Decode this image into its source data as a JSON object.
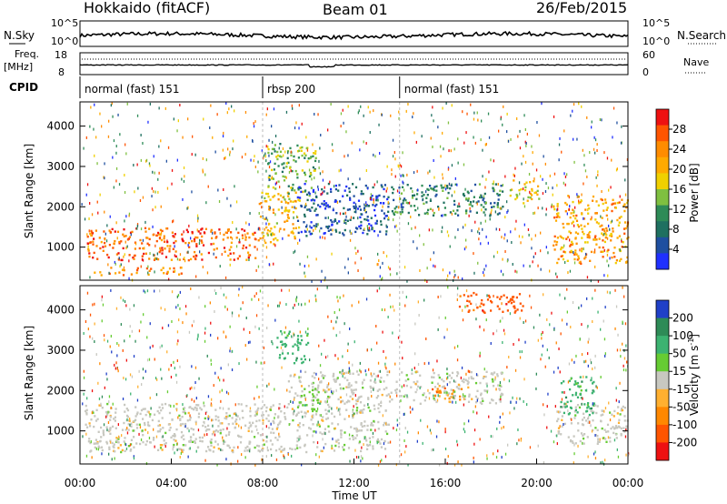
{
  "header": {
    "station": "Hokkaido (fitACF)",
    "beam": "Beam 01",
    "date": "26/Feb/2015"
  },
  "top_panel": {
    "left_label": "N.Sky",
    "right_label": "N.Search",
    "y_ticks_left": [
      "10^5",
      "10^0"
    ],
    "y_ticks_right": [
      "10^5",
      "10^0"
    ]
  },
  "freq_panel": {
    "left_label_1": "Freq.",
    "left_label_2": "[MHz]",
    "right_label": "Nave",
    "y_ticks_left": [
      "18",
      "8"
    ],
    "y_ticks_right": [
      "60",
      "0"
    ]
  },
  "cpid_panel": {
    "label": "CPID",
    "segments": [
      {
        "label": "normal (fast) 151",
        "start_hour": 0,
        "end_hour": 8
      },
      {
        "label": "rbsp 200",
        "start_hour": 8,
        "end_hour": 14
      },
      {
        "label": "normal (fast) 151",
        "start_hour": 14,
        "end_hour": 24
      }
    ]
  },
  "chart_data": [
    {
      "type": "heatmap",
      "panel": "power",
      "xlabel": "",
      "ylabel": "Slant Range [km]",
      "x_range_hours": [
        0,
        24
      ],
      "y_range_km": [
        180,
        4600
      ],
      "y_ticks": [
        1000,
        2000,
        3000,
        4000
      ],
      "colorbar": {
        "label": "Power [dB]",
        "ticks": [
          "28",
          "24",
          "20",
          "16",
          "12",
          "8",
          "4"
        ],
        "colors": [
          "#ee1111",
          "#ff5500",
          "#ff8c00",
          "#ffaa00",
          "#f0d000",
          "#7fc040",
          "#2e8b57",
          "#1f7060",
          "#1f4fa0",
          "#2030ff"
        ]
      },
      "regions": [
        {
          "t0": 0.3,
          "t1": 7.8,
          "r0": 700,
          "r1": 1500,
          "level": 26,
          "desc": "strong near-range echoes"
        },
        {
          "t0": 0.6,
          "t1": 4.5,
          "r0": 330,
          "r1": 520,
          "level": 24
        },
        {
          "t0": 7.8,
          "t1": 9.6,
          "r0": 1100,
          "r1": 2400,
          "level": 20
        },
        {
          "t0": 8.2,
          "t1": 10.3,
          "r0": 2300,
          "r1": 3600,
          "level": 14
        },
        {
          "t0": 9.5,
          "t1": 13.5,
          "r0": 1300,
          "r1": 2600,
          "level": 6
        },
        {
          "t0": 13.5,
          "t1": 18.5,
          "r0": 1800,
          "r1": 2600,
          "level": 10
        },
        {
          "t0": 18.8,
          "t1": 20.1,
          "r0": 2100,
          "r1": 2700,
          "level": 18
        },
        {
          "t0": 20.7,
          "t1": 24,
          "r0": 600,
          "r1": 2300,
          "level": 22
        }
      ]
    },
    {
      "type": "heatmap",
      "panel": "velocity",
      "xlabel": "Time UT",
      "ylabel": "Slant Range [km]",
      "x_range_hours": [
        0,
        24
      ],
      "y_range_km": [
        180,
        4600
      ],
      "y_ticks": [
        1000,
        2000,
        3000,
        4000
      ],
      "x_ticks": [
        "00:00",
        "04:00",
        "08:00",
        "12:00",
        "16:00",
        "20:00",
        "00:00"
      ],
      "colorbar": {
        "label": "Velocity [m s",
        "label_superscript": "-1",
        "label_close": "]",
        "ticks": [
          "200",
          "100",
          "50",
          "15",
          "-15",
          "-50",
          "-100",
          "-200"
        ],
        "colors": [
          "#2040c8",
          "#2e8b57",
          "#3cb371",
          "#66cc33",
          "#c8c8c0",
          "#ffb030",
          "#ff8800",
          "#ff5500",
          "#ee1111"
        ]
      },
      "regions": [
        {
          "t0": 0.2,
          "t1": 13.5,
          "r0": 500,
          "r1": 1700,
          "value": 0,
          "desc": "ground scatter (grey)"
        },
        {
          "t0": 9.0,
          "t1": 18.5,
          "r0": 1700,
          "r1": 2500,
          "value": 0
        },
        {
          "t0": 8.5,
          "t1": 10.0,
          "r0": 2700,
          "r1": 3500,
          "value": 60
        },
        {
          "t0": 9.5,
          "t1": 10.5,
          "r0": 1500,
          "r1": 2100,
          "value": 30
        },
        {
          "t0": 15.2,
          "t1": 16.8,
          "r0": 1800,
          "r1": 2100,
          "value": -40
        },
        {
          "t0": 20.8,
          "t1": 24,
          "r0": 700,
          "r1": 1700,
          "value": 0
        },
        {
          "t0": 21.0,
          "t1": 22.5,
          "r0": 1400,
          "r1": 2400,
          "value": 40
        },
        {
          "t0": 16.5,
          "t1": 19.5,
          "r0": 3950,
          "r1": 4450,
          "value": -150
        }
      ]
    }
  ]
}
